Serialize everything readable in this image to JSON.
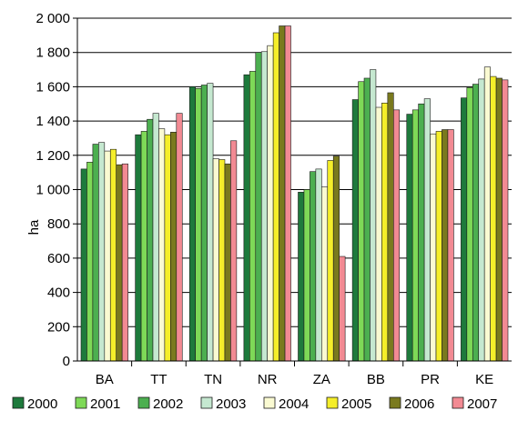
{
  "chart_data": {
    "type": "bar",
    "title": "",
    "xlabel": "",
    "ylabel": "ha",
    "ylim": [
      0,
      2000
    ],
    "yticks": [
      0,
      200,
      400,
      600,
      800,
      1000,
      1200,
      1400,
      1600,
      1800,
      2000
    ],
    "ytick_labels": [
      "0",
      "200",
      "400",
      "600",
      "800",
      "1 000",
      "1 200",
      "1 400",
      "1 600",
      "1 800",
      "2 000"
    ],
    "grid": "horizontal",
    "legend_position": "bottom",
    "categories": [
      "BA",
      "TT",
      "TN",
      "NR",
      "ZA",
      "BB",
      "PR",
      "KE"
    ],
    "series": [
      {
        "name": "2000",
        "color": "#1e7a3c",
        "values": [
          1120,
          1320,
          1600,
          1670,
          985,
          1525,
          1440,
          1535
        ]
      },
      {
        "name": "2001",
        "color": "#7ed957",
        "values": [
          1160,
          1340,
          1590,
          1690,
          1000,
          1630,
          1465,
          1595
        ]
      },
      {
        "name": "2002",
        "color": "#4caf50",
        "values": [
          1265,
          1410,
          1610,
          1800,
          1105,
          1650,
          1500,
          1615
        ]
      },
      {
        "name": "2003",
        "color": "#c5e8d0",
        "values": [
          1275,
          1445,
          1620,
          1805,
          1120,
          1700,
          1530,
          1645
        ]
      },
      {
        "name": "2004",
        "color": "#fafad2",
        "values": [
          1225,
          1355,
          1180,
          1840,
          1015,
          1480,
          1325,
          1715
        ]
      },
      {
        "name": "2005",
        "color": "#f5ee2a",
        "values": [
          1235,
          1320,
          1175,
          1915,
          1170,
          1505,
          1340,
          1660
        ]
      },
      {
        "name": "2006",
        "color": "#7a7a1e",
        "values": [
          1145,
          1335,
          1150,
          1955,
          1195,
          1565,
          1350,
          1650
        ]
      },
      {
        "name": "2007",
        "color": "#f28a93",
        "values": [
          1150,
          1445,
          1285,
          1955,
          610,
          1465,
          1350,
          1640
        ]
      }
    ]
  }
}
